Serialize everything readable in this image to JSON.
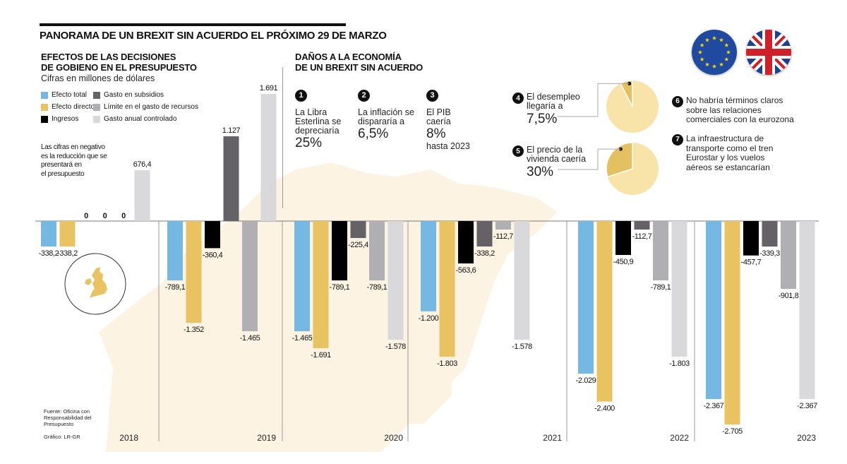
{
  "header": {
    "main_title": "PANORAMA DE UN BREXIT SIN ACUERDO EL PRÓXIMO 29 DE MARZO"
  },
  "left_section": {
    "title_line1": "EFECTOS DE LAS DECISIONES",
    "title_line2": "DE GOBIENO EN EL PRESUPUESTO",
    "subtitle": "Cifras en millones de dólares",
    "note_lines": [
      "Las cifras en negativo",
      "es la reducción que se",
      "presentará en",
      "el presupuesto"
    ],
    "source_lines": [
      "Fuente: Oficina con",
      "Responsabilidad del",
      "Presupuesto"
    ],
    "credit": "Gráfico: LR-GR"
  },
  "right_section": {
    "title_line1": "DAÑOS A LA ECONOMÍA",
    "title_line2": "DE UN BREXIT SIN ACUERDO",
    "facts": [
      {
        "number": "1",
        "text_lines": [
          "La Libra",
          "Esterlina se",
          "depreciaría"
        ],
        "value": "25%",
        "suffix": ""
      },
      {
        "number": "2",
        "text_lines": [
          "La inflación se",
          "dispararía a"
        ],
        "value": "6,5%",
        "suffix": ""
      },
      {
        "number": "3",
        "text_lines": [
          "El PIB",
          "caería"
        ],
        "value": "8%",
        "suffix": "hasta 2023"
      }
    ],
    "pie_facts": [
      {
        "number": "4",
        "text_lines": [
          "El desempleo",
          "llegaría a"
        ],
        "value": "7,5%",
        "fraction": 0.075
      },
      {
        "number": "5",
        "text_lines": [
          "El precio de la",
          "vivienda caería"
        ],
        "value": "30%",
        "fraction": 0.3
      }
    ],
    "side_facts": [
      {
        "number": "6",
        "text_lines": [
          "No habría términos claros",
          "sobre las relaciones",
          "comerciales con la eurozona"
        ]
      },
      {
        "number": "7",
        "text_lines": [
          "La infraestructura de",
          "transporte como el tren",
          "Eurostar y los vuelos",
          "aéreos se estancarían"
        ]
      }
    ],
    "flags": [
      "eu-flag",
      "uk-flag"
    ]
  },
  "colors": {
    "efecto_total": "#74b8e3",
    "efecto_directo": "#e9c262",
    "ingresos": "#000000",
    "gasto_subsidios": "#646266",
    "limite_gasto": "#b0afb3",
    "gasto_anual": "#d9d9dc",
    "pie_light": "#f8e3a8",
    "pie_dark": "#e5c061",
    "map_bg": "#fdf3e2"
  },
  "chart_data": {
    "type": "bar",
    "title": "EFECTOS DE LAS DECISIONES DE GOBIENO EN EL PRESUPUESTO",
    "ylabel": "Cifras en millones de dólares",
    "xlabel": "",
    "categories": [
      "2018",
      "2019",
      "2020",
      "2021",
      "2022",
      "2023"
    ],
    "ylim": [
      -2705,
      1691
    ],
    "grid": false,
    "legend_position": "top-left",
    "series": [
      {
        "name": "Efecto total",
        "key": "efecto_total",
        "values": [
          -338.2,
          -789.1,
          -1465,
          -1200,
          -2029,
          -2367
        ],
        "labels": [
          "-338,2",
          "-789,1",
          "-1.465",
          "-1.200",
          "-2.029",
          "-2.367"
        ]
      },
      {
        "name": "Efecto directo",
        "key": "efecto_directo",
        "values": [
          -338.2,
          -1352,
          -1691,
          -1803,
          -2400,
          -2705
        ],
        "labels": [
          "-338,2",
          "-1.352",
          "-1.691",
          "-1.803",
          "-2.400",
          "-2.705"
        ]
      },
      {
        "name": "Ingresos",
        "key": "ingresos",
        "values": [
          0,
          -360.4,
          -789.1,
          -563.6,
          -450.9,
          -457.7
        ],
        "labels": [
          "0",
          "-360,4",
          "-789,1",
          "-563,6",
          "-450,9",
          "-457,7"
        ]
      },
      {
        "name": "Gasto en subsidios",
        "key": "gasto_subsidios",
        "values": [
          0,
          1127,
          -225.4,
          -338.2,
          -112.7,
          -339.3
        ],
        "labels": [
          "0",
          "1.127",
          "-225,4",
          "-338,2",
          "-112,7",
          "-339,3"
        ]
      },
      {
        "name": "Límite en el gasto de recursos",
        "key": "limite_gasto",
        "values": [
          0,
          -1465,
          -789.1,
          -112.7,
          -789.1,
          -901.8
        ],
        "labels": [
          "0",
          "-1.465",
          "-789,1",
          "-112,7",
          "-789,1",
          "-901,8"
        ]
      },
      {
        "name": "Gasto anual controlado",
        "key": "gasto_anual",
        "values": [
          676.4,
          1691,
          -1578,
          -1578,
          -1803,
          -2367
        ],
        "labels": [
          "676,4",
          "1.691",
          "-1.578",
          "-1.578",
          "-1.803",
          "-2.367"
        ]
      }
    ]
  }
}
